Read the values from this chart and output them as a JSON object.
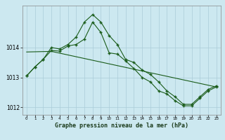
{
  "title": "Graphe pression niveau de la mer (hPa)",
  "background_color": "#cce8f0",
  "grid_color": "#aaccd8",
  "line_color": "#1a5c1a",
  "x_labels": [
    "0",
    "1",
    "2",
    "3",
    "4",
    "5",
    "6",
    "7",
    "8",
    "9",
    "10",
    "11",
    "12",
    "13",
    "14",
    "15",
    "16",
    "17",
    "18",
    "19",
    "20",
    "21",
    "22",
    "23"
  ],
  "upper_x": [
    0,
    1,
    2,
    3,
    4,
    5,
    6,
    7,
    8,
    9,
    10,
    11,
    12,
    13,
    14,
    15,
    16,
    17,
    18,
    19,
    20,
    21,
    22,
    23
  ],
  "upper_y": [
    1013.05,
    1013.35,
    1013.6,
    1014.0,
    1013.95,
    1014.1,
    1014.35,
    1014.85,
    1015.1,
    1014.85,
    1014.4,
    1014.1,
    1013.6,
    1013.5,
    1013.25,
    1013.1,
    1012.85,
    1012.55,
    1012.35,
    1012.1,
    1012.1,
    1012.35,
    1012.6,
    1012.72
  ],
  "lower_x": [
    0,
    1,
    2,
    3,
    4,
    5,
    6,
    7,
    8,
    9,
    10,
    11,
    12,
    13,
    14,
    15,
    16,
    17,
    18,
    19,
    20,
    21,
    22,
    23
  ],
  "lower_y": [
    1013.05,
    1013.35,
    1013.6,
    1013.9,
    1013.88,
    1014.05,
    1014.1,
    1014.28,
    1014.85,
    1014.5,
    1013.82,
    1013.78,
    1013.55,
    1013.3,
    1013.0,
    1012.85,
    1012.55,
    1012.45,
    1012.22,
    1012.05,
    1012.05,
    1012.3,
    1012.55,
    1012.68
  ],
  "trend_x": [
    0,
    3,
    23
  ],
  "trend_y": [
    1013.85,
    1013.87,
    1012.68
  ],
  "ylim": [
    1011.75,
    1015.4
  ],
  "yticks": [
    1012,
    1013,
    1014
  ],
  "xlim": [
    -0.5,
    23.5
  ],
  "figsize": [
    3.2,
    2.0
  ],
  "dpi": 100
}
